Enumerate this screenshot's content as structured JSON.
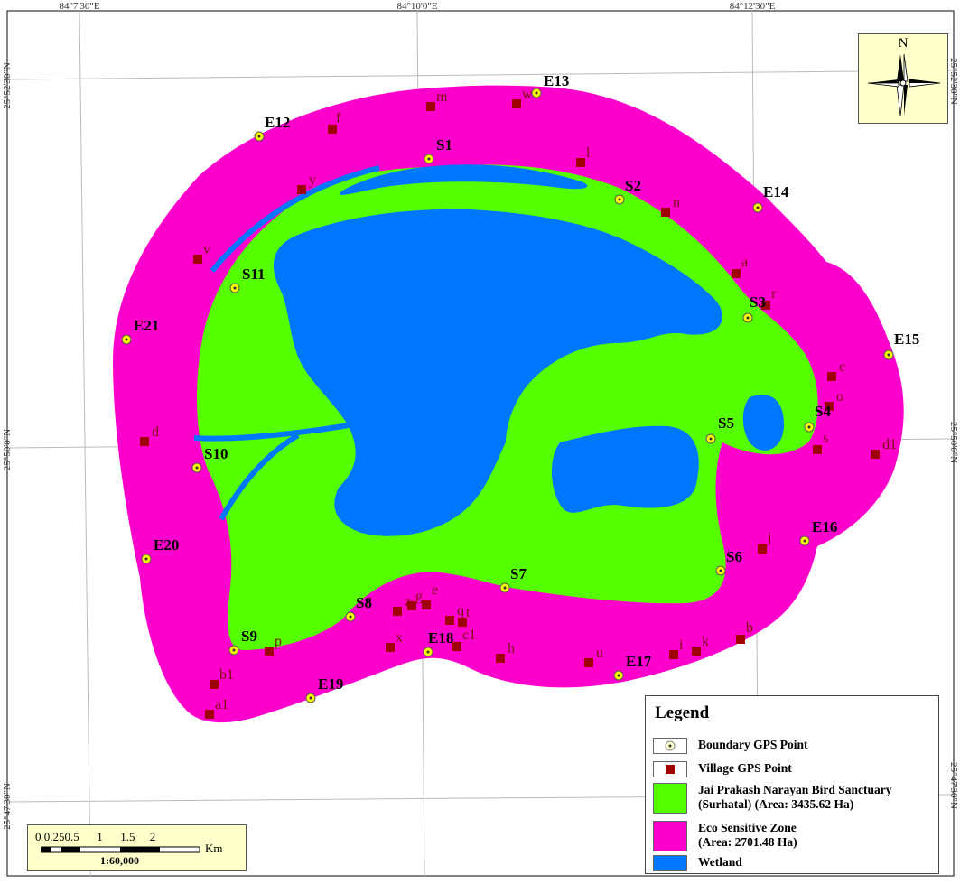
{
  "grid": {
    "top_longitudes": [
      "84°7'30\"E",
      "84°10'0\"E",
      "84°12'30\"E"
    ],
    "left_latitudes": [
      "25°52'30\"N",
      "25°50'0\"N",
      "25°47'30\"N"
    ],
    "right_latitudes": [
      "25°52'30\"N",
      "25°50'0\"N",
      "25°47'30\"N"
    ]
  },
  "boundary_points": [
    {
      "id": "E13",
      "label": "E13"
    },
    {
      "id": "E12",
      "label": "E12"
    },
    {
      "id": "S1",
      "label": "S1"
    },
    {
      "id": "S2",
      "label": "S2"
    },
    {
      "id": "E14",
      "label": "E14"
    },
    {
      "id": "S11",
      "label": "S11"
    },
    {
      "id": "S3",
      "label": "S3"
    },
    {
      "id": "E21",
      "label": "E21"
    },
    {
      "id": "E15",
      "label": "E15"
    },
    {
      "id": "S4",
      "label": "S4"
    },
    {
      "id": "S5",
      "label": "S5"
    },
    {
      "id": "S10",
      "label": "S10"
    },
    {
      "id": "E16",
      "label": "E16"
    },
    {
      "id": "E20",
      "label": "E20"
    },
    {
      "id": "S6",
      "label": "S6"
    },
    {
      "id": "S7",
      "label": "S7"
    },
    {
      "id": "S8",
      "label": "S8"
    },
    {
      "id": "S9",
      "label": "S9"
    },
    {
      "id": "E18",
      "label": "E18"
    },
    {
      "id": "E17",
      "label": "E17"
    },
    {
      "id": "E19",
      "label": "E19"
    }
  ],
  "village_points": [
    {
      "id": "m",
      "label": "m"
    },
    {
      "id": "w",
      "label": "w"
    },
    {
      "id": "f",
      "label": "f"
    },
    {
      "id": "l",
      "label": "l"
    },
    {
      "id": "y",
      "label": "y"
    },
    {
      "id": "n",
      "label": "n"
    },
    {
      "id": "v",
      "label": "v"
    },
    {
      "id": "a",
      "label": "a"
    },
    {
      "id": "r",
      "label": "r"
    },
    {
      "id": "c",
      "label": "c"
    },
    {
      "id": "o",
      "label": "o"
    },
    {
      "id": "d",
      "label": "d"
    },
    {
      "id": "s",
      "label": "s"
    },
    {
      "id": "d1",
      "label": "d1"
    },
    {
      "id": "j",
      "label": "j"
    },
    {
      "id": "z",
      "label": "z"
    },
    {
      "id": "g",
      "label": "g"
    },
    {
      "id": "e",
      "label": "e"
    },
    {
      "id": "q",
      "label": "q"
    },
    {
      "id": "t",
      "label": "t"
    },
    {
      "id": "c1",
      "label": "c1"
    },
    {
      "id": "x",
      "label": "x"
    },
    {
      "id": "h",
      "label": "h"
    },
    {
      "id": "p",
      "label": "p"
    },
    {
      "id": "u",
      "label": "u"
    },
    {
      "id": "i",
      "label": "i"
    },
    {
      "id": "k",
      "label": "k"
    },
    {
      "id": "b",
      "label": "b"
    },
    {
      "id": "b1",
      "label": "b1"
    },
    {
      "id": "a1",
      "label": "a1"
    }
  ],
  "colors": {
    "eco_zone": "#ff00cc",
    "sanctuary": "#55ff00",
    "wetland": "#0077ff",
    "village": "#a00000",
    "boundary_point": "#ffff00"
  },
  "legend": {
    "title": "Legend",
    "boundary": "Boundary GPS Point",
    "village": "Village GPS Point",
    "sanctuary_line1": "Jai Prakash Narayan Bird Sanctuary",
    "sanctuary_line2": "(Surhatal) (Area: 3435.62 Ha)",
    "eco_line1": "Eco Sensitive Zone",
    "eco_line2": "(Area: 2701.48 Ha)",
    "wetland": "Wetland"
  },
  "north_arrow": {
    "letter": "N",
    "icon": "compass-rose-icon"
  },
  "scale_bar": {
    "ticks": "0 0.250.5      1      1.5     2",
    "unit": "Km",
    "ratio": "1:60,000"
  }
}
